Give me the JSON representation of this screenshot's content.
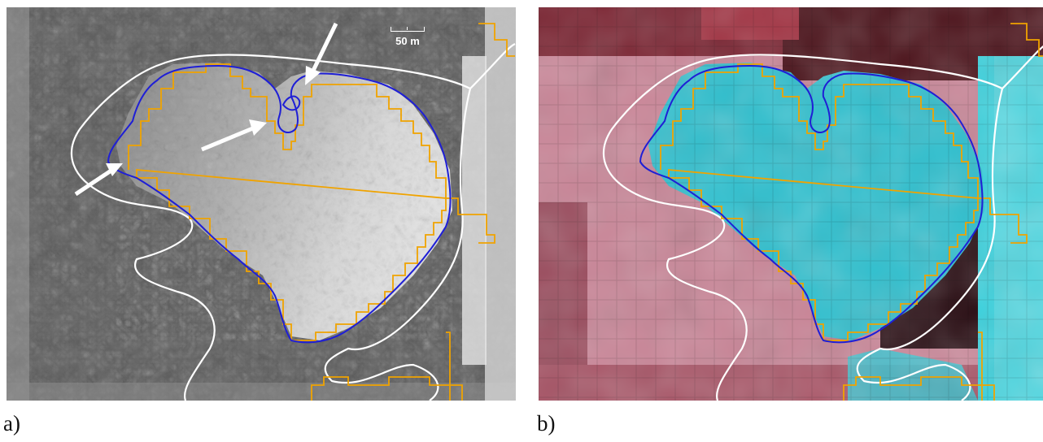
{
  "figure": {
    "panel_a": {
      "caption": "a)",
      "scale_bar": {
        "label": "50 m"
      },
      "kind": "grayscale aerial photograph with outlines and pointer arrows"
    },
    "panel_b": {
      "caption": "b)",
      "kind": "false-color satellite image with outlines"
    },
    "outline_colors": {
      "detailed_outline": "#1f1fd6",
      "pixel_outline": "#f0a300",
      "reference_outline": "#ffffff"
    },
    "surface_colors": {
      "ice_cyan": "#2fc0cf",
      "terrain_pink": "#c98597",
      "dark_red": "#5a1420"
    }
  }
}
